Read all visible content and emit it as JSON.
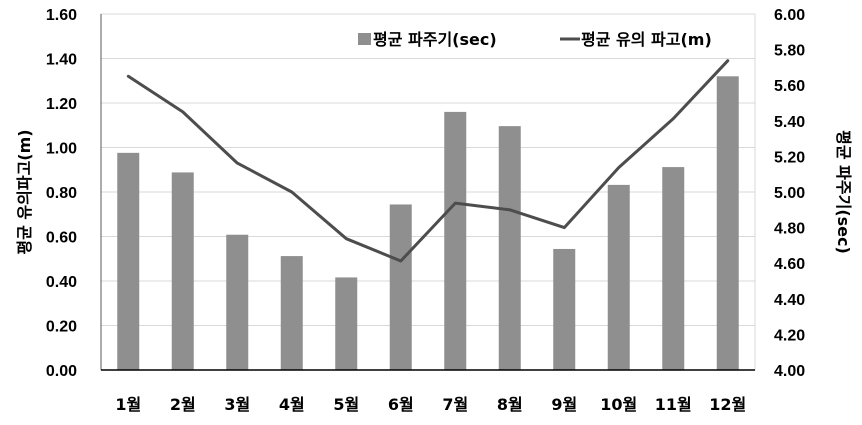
{
  "chart_data": {
    "type": "bar+line",
    "title": "",
    "categories": [
      "1월",
      "2월",
      "3월",
      "4월",
      "5월",
      "6월",
      "7월",
      "8월",
      "9월",
      "10월",
      "11월",
      "12월"
    ],
    "series": [
      {
        "name": "평균 파주기(sec)",
        "type": "bar",
        "axis": "right",
        "color": "#8f8f8f",
        "values": [
          5.22,
          5.11,
          4.76,
          4.64,
          4.52,
          4.93,
          5.45,
          5.37,
          4.68,
          5.04,
          5.14,
          5.65
        ]
      },
      {
        "name": "평균 유의 파고(m)",
        "type": "line",
        "axis": "left",
        "color": "#4d4d4d",
        "values": [
          1.32,
          1.16,
          0.93,
          0.8,
          0.59,
          0.49,
          0.75,
          0.72,
          0.64,
          0.91,
          1.13,
          1.39
        ]
      }
    ],
    "left_axis": {
      "label": "평균 유의파고(m)",
      "ylim": [
        0,
        1.6
      ],
      "ticks": [
        "0.00",
        "0.20",
        "0.40",
        "0.60",
        "0.80",
        "1.00",
        "1.20",
        "1.40",
        "1.60"
      ]
    },
    "right_axis": {
      "label": "평균 파주기(sec)",
      "ylim": [
        4.0,
        6.0
      ],
      "ticks": [
        "4.00",
        "4.20",
        "4.40",
        "4.60",
        "4.80",
        "5.00",
        "5.20",
        "5.40",
        "5.60",
        "5.80",
        "6.00"
      ]
    },
    "xlabel": "",
    "grid": true,
    "legend_position": "top-right inside"
  }
}
